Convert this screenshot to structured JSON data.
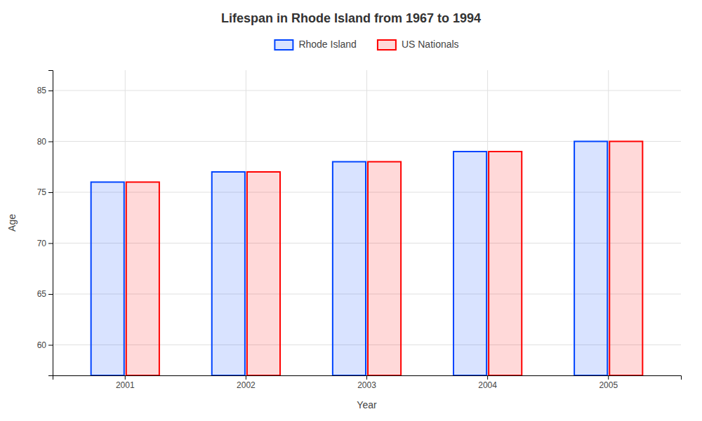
{
  "chart_data": {
    "type": "bar",
    "title": "Lifespan in Rhode Island from 1967 to 1994",
    "xlabel": "Year",
    "ylabel": "Age",
    "categories": [
      "2001",
      "2002",
      "2003",
      "2004",
      "2005"
    ],
    "series": [
      {
        "name": "Rhode Island",
        "color": "#0044ff",
        "values": [
          76,
          77,
          78,
          79,
          80
        ]
      },
      {
        "name": "US Nationals",
        "color": "#ff0000",
        "values": [
          76,
          77,
          78,
          79,
          80
        ]
      }
    ],
    "ylim": [
      57,
      87
    ],
    "yticks": [
      60,
      65,
      70,
      75,
      80,
      85
    ],
    "grid": true,
    "legend": "top"
  }
}
